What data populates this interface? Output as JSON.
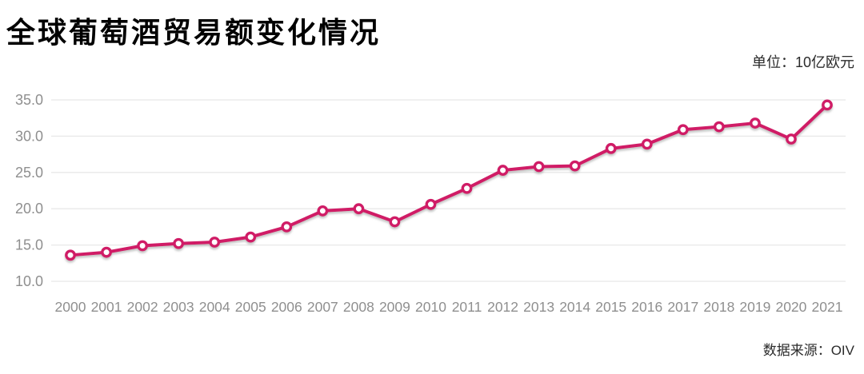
{
  "header": {
    "title": "全球葡萄酒贸易额变化情况",
    "unit_label": "单位：10亿欧元"
  },
  "footer": {
    "source_label": "数据来源：OIV"
  },
  "chart_data": {
    "type": "line",
    "title": "全球葡萄酒贸易额变化情况",
    "unit": "10亿欧元",
    "source": "OIV",
    "categories": [
      "2000",
      "2001",
      "2002",
      "2003",
      "2004",
      "2005",
      "2006",
      "2007",
      "2008",
      "2009",
      "2010",
      "2011",
      "2012",
      "2013",
      "2014",
      "2015",
      "2016",
      "2017",
      "2018",
      "2019",
      "2020",
      "2021"
    ],
    "values": [
      13.6,
      14.0,
      14.9,
      15.2,
      15.4,
      16.1,
      17.5,
      19.7,
      20.0,
      18.2,
      20.6,
      22.8,
      25.3,
      25.8,
      25.9,
      28.3,
      28.9,
      30.9,
      31.3,
      31.8,
      29.6,
      34.3
    ],
    "yticks": [
      10.0,
      15.0,
      20.0,
      25.0,
      30.0,
      35.0
    ],
    "ytick_labels": [
      "10.0",
      "15.0",
      "20.0",
      "25.0",
      "30.0",
      "35.0"
    ],
    "ylim": [
      10,
      35
    ],
    "grid": true,
    "legend": false,
    "colors": {
      "line": "#d01a66",
      "marker_fill": "#ffffff",
      "grid": "#e8e8e8",
      "axis_text": "#8f8f8f",
      "title": "#000000",
      "annotation": "#2b2b2b",
      "background": "#ffffff"
    }
  }
}
